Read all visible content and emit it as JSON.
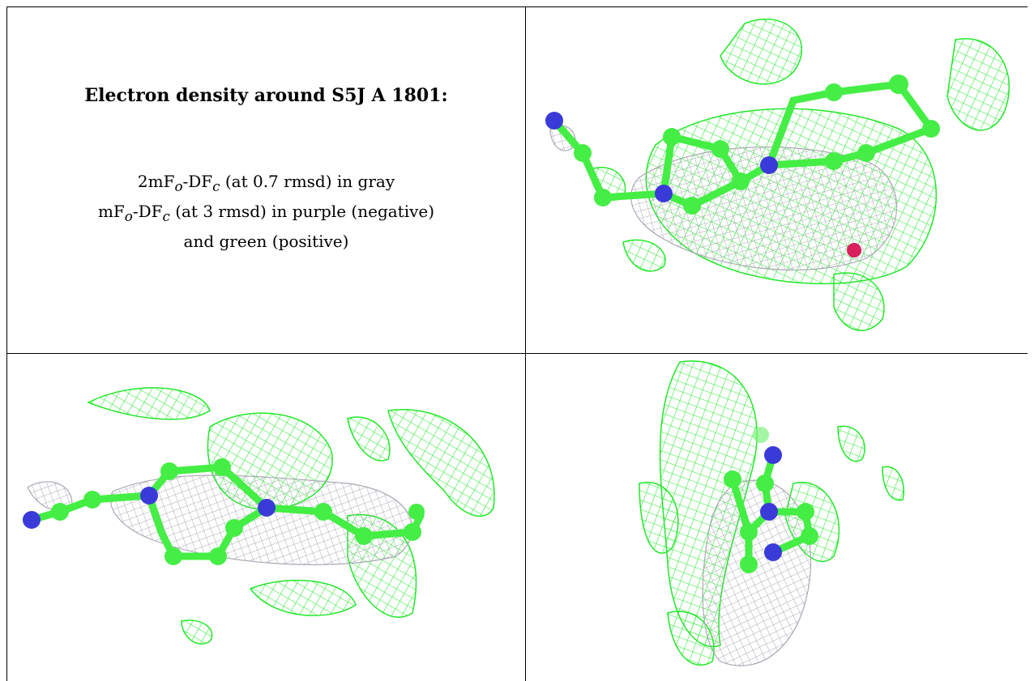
{
  "title": "Electron density around S5J A 1801:",
  "legend": {
    "line1_prefix": "2mF",
    "line1_sub_o": "o",
    "line1_mid": "-DF",
    "line1_sub_c": "c",
    "line1_suffix": " (at 0.7 rmsd) in gray",
    "line2_prefix": "mF",
    "line2_sub_o": "o",
    "line2_mid": "-DF",
    "line2_sub_c": "c",
    "line2_suffix": " (at 3 rmsd) in purple (negative)",
    "line3": "and green (positive)"
  },
  "colors": {
    "green_mesh": "#22e82a",
    "gray_mesh": "#a9a9b4",
    "carbon": "#44ee44",
    "nitrogen": "#3a3ad8",
    "oxygen": "#d8205a"
  }
}
